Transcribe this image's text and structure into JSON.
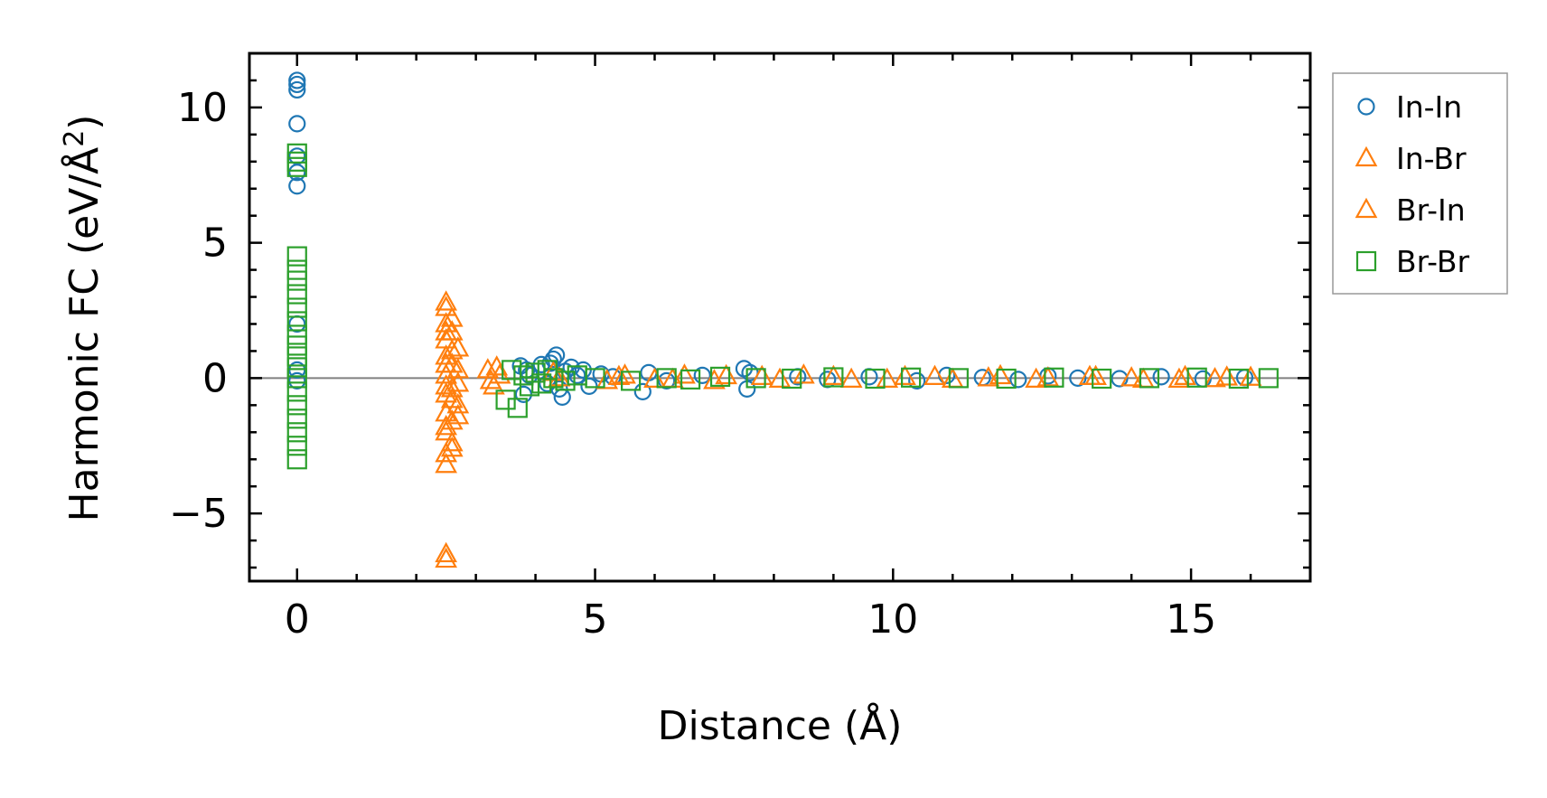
{
  "chart_data": {
    "type": "scatter",
    "title": "",
    "xlabel": "Distance (Å)",
    "ylabel_main": "Harmonic FC (eV/Å",
    "ylabel_sup": "2",
    "ylabel_close": ")",
    "xlim": [
      -0.8,
      17.0
    ],
    "ylim": [
      -7.5,
      12.0
    ],
    "xticks": [
      0,
      5,
      10,
      15
    ],
    "xtick_labels": [
      "0",
      "5",
      "10",
      "15"
    ],
    "yticks": [
      -5,
      0,
      5,
      10
    ],
    "ytick_labels": [
      "−5",
      "0",
      "5",
      "10"
    ],
    "x_minor_step": 1,
    "y_minor_step": 1,
    "zero_line": true,
    "grid": false,
    "legend_position": "outside right, top",
    "series": [
      {
        "name": "In-In",
        "marker": "circle",
        "color": "#1f77b4",
        "points": [
          [
            0.0,
            11.0
          ],
          [
            0.0,
            10.85
          ],
          [
            0.0,
            10.65
          ],
          [
            0.0,
            9.4
          ],
          [
            0.0,
            8.2
          ],
          [
            0.0,
            7.6
          ],
          [
            0.0,
            7.1
          ],
          [
            0.0,
            2.0
          ],
          [
            0.0,
            0.3
          ],
          [
            0.0,
            -0.1
          ],
          [
            3.75,
            0.45
          ],
          [
            3.8,
            -0.6
          ],
          [
            3.85,
            0.3
          ],
          [
            3.9,
            0.1
          ],
          [
            4.1,
            0.5
          ],
          [
            4.2,
            -0.2
          ],
          [
            4.25,
            0.55
          ],
          [
            4.3,
            0.7
          ],
          [
            4.35,
            0.85
          ],
          [
            4.4,
            -0.4
          ],
          [
            4.45,
            -0.7
          ],
          [
            4.5,
            0.25
          ],
          [
            4.6,
            0.4
          ],
          [
            4.7,
            0.1
          ],
          [
            4.8,
            0.3
          ],
          [
            4.9,
            -0.3
          ],
          [
            5.1,
            0.15
          ],
          [
            5.3,
            0.05
          ],
          [
            5.8,
            -0.5
          ],
          [
            5.9,
            0.2
          ],
          [
            6.2,
            -0.1
          ],
          [
            6.8,
            0.1
          ],
          [
            7.5,
            0.35
          ],
          [
            7.55,
            -0.4
          ],
          [
            7.6,
            0.2
          ],
          [
            8.4,
            0.05
          ],
          [
            8.9,
            -0.05
          ],
          [
            9.6,
            0.05
          ],
          [
            10.4,
            -0.1
          ],
          [
            10.9,
            0.1
          ],
          [
            11.5,
            0.02
          ],
          [
            12.1,
            -0.05
          ],
          [
            12.6,
            0.08
          ],
          [
            13.1,
            0.0
          ],
          [
            13.8,
            -0.02
          ],
          [
            14.5,
            0.05
          ],
          [
            15.2,
            -0.03
          ],
          [
            15.9,
            0.02
          ]
        ]
      },
      {
        "name": "In-Br",
        "marker": "triangle",
        "color": "#ff7f0e",
        "points": [
          [
            2.5,
            2.6
          ],
          [
            2.5,
            2.0
          ],
          [
            2.5,
            1.4
          ],
          [
            2.5,
            0.8
          ],
          [
            2.5,
            0.1
          ],
          [
            2.5,
            -0.6
          ],
          [
            2.5,
            -1.3
          ],
          [
            2.5,
            -2.0
          ],
          [
            2.5,
            -2.8
          ],
          [
            2.5,
            -6.7
          ],
          [
            2.6,
            1.7
          ],
          [
            2.6,
            0.5
          ],
          [
            2.6,
            -0.4
          ],
          [
            2.6,
            -1.6
          ],
          [
            2.6,
            -2.4
          ],
          [
            2.7,
            1.1
          ],
          [
            2.7,
            -0.2
          ],
          [
            2.7,
            -1.0
          ],
          [
            3.2,
            0.3
          ],
          [
            3.3,
            -0.3
          ],
          [
            3.4,
            0.1
          ],
          [
            4.3,
            0.2
          ],
          [
            5.2,
            -0.1
          ],
          [
            5.5,
            0.1
          ],
          [
            6.0,
            -0.05
          ],
          [
            6.5,
            0.1
          ],
          [
            7.0,
            -0.1
          ],
          [
            7.8,
            0.05
          ],
          [
            8.5,
            0.1
          ],
          [
            9.3,
            -0.05
          ],
          [
            10.2,
            0.05
          ],
          [
            11.0,
            -0.05
          ],
          [
            11.8,
            0.08
          ],
          [
            12.6,
            0.0
          ],
          [
            13.4,
            0.05
          ],
          [
            14.2,
            -0.05
          ],
          [
            14.9,
            0.05
          ],
          [
            15.4,
            -0.03
          ],
          [
            16.0,
            0.02
          ]
        ]
      },
      {
        "name": "Br-In",
        "marker": "triangle",
        "color": "#ff7f0e",
        "points": [
          [
            2.5,
            2.8
          ],
          [
            2.5,
            1.7
          ],
          [
            2.5,
            0.5
          ],
          [
            2.5,
            -0.3
          ],
          [
            2.5,
            -1.8
          ],
          [
            2.5,
            -3.2
          ],
          [
            2.5,
            -6.5
          ],
          [
            2.6,
            2.2
          ],
          [
            2.6,
            1.0
          ],
          [
            2.6,
            -0.8
          ],
          [
            2.6,
            -2.6
          ],
          [
            2.7,
            0.3
          ],
          [
            2.7,
            -1.4
          ],
          [
            3.25,
            -0.1
          ],
          [
            3.35,
            0.4
          ],
          [
            4.4,
            0.0
          ],
          [
            5.4,
            0.05
          ],
          [
            6.3,
            -0.05
          ],
          [
            7.2,
            0.08
          ],
          [
            8.1,
            -0.05
          ],
          [
            9.0,
            0.05
          ],
          [
            9.9,
            -0.05
          ],
          [
            10.7,
            0.05
          ],
          [
            11.6,
            0.0
          ],
          [
            12.4,
            -0.05
          ],
          [
            13.3,
            0.05
          ],
          [
            14.0,
            0.0
          ],
          [
            14.8,
            -0.05
          ],
          [
            15.6,
            0.03
          ]
        ]
      },
      {
        "name": "Br-Br",
        "marker": "square",
        "color": "#2ca02c",
        "points": [
          [
            0.0,
            8.3
          ],
          [
            0.0,
            8.0
          ],
          [
            0.0,
            7.8
          ],
          [
            0.0,
            4.5
          ],
          [
            0.0,
            4.0
          ],
          [
            0.0,
            3.6
          ],
          [
            0.0,
            3.1
          ],
          [
            0.0,
            2.6
          ],
          [
            0.0,
            2.1
          ],
          [
            0.0,
            1.6
          ],
          [
            0.0,
            1.2
          ],
          [
            0.0,
            0.8
          ],
          [
            0.0,
            0.4
          ],
          [
            0.0,
            0.0
          ],
          [
            0.0,
            -0.5
          ],
          [
            0.0,
            -1.0
          ],
          [
            0.0,
            -1.5
          ],
          [
            0.0,
            -2.0
          ],
          [
            0.0,
            -2.5
          ],
          [
            0.0,
            -3.0
          ],
          [
            3.5,
            -0.8
          ],
          [
            3.6,
            0.3
          ],
          [
            3.7,
            -1.1
          ],
          [
            3.8,
            0.1
          ],
          [
            3.9,
            -0.3
          ],
          [
            4.0,
            0.2
          ],
          [
            4.1,
            -0.2
          ],
          [
            4.2,
            0.3
          ],
          [
            4.3,
            0.0
          ],
          [
            4.5,
            -0.1
          ],
          [
            4.7,
            0.1
          ],
          [
            5.0,
            0.0
          ],
          [
            5.6,
            -0.1
          ],
          [
            6.2,
            0.0
          ],
          [
            6.6,
            -0.05
          ],
          [
            7.1,
            0.05
          ],
          [
            7.7,
            0.0
          ],
          [
            8.3,
            -0.02
          ],
          [
            9.0,
            0.03
          ],
          [
            9.7,
            -0.02
          ],
          [
            10.3,
            0.02
          ],
          [
            11.1,
            0.0
          ],
          [
            11.9,
            -0.02
          ],
          [
            12.7,
            0.02
          ],
          [
            13.5,
            -0.02
          ],
          [
            14.3,
            0.0
          ],
          [
            15.1,
            0.02
          ],
          [
            15.8,
            -0.02
          ],
          [
            16.3,
            0.0
          ]
        ]
      }
    ]
  }
}
